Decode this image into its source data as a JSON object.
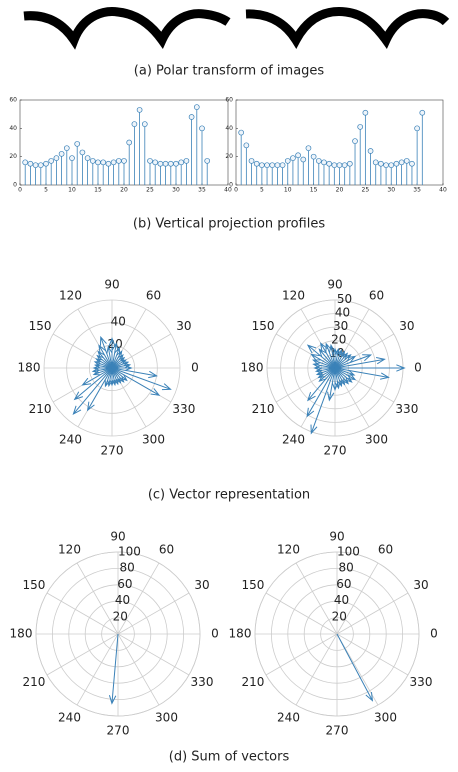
{
  "captions": [
    "(a) Polar transform of images",
    "(b) Vertical projection profiles",
    "(c) Vector representation",
    "(d) Sum of vectors"
  ],
  "chart_data": [
    {
      "type": "stem",
      "color": "#3b82b8",
      "x": [
        1,
        2,
        3,
        4,
        5,
        6,
        7,
        8,
        9,
        10,
        11,
        12,
        13,
        14,
        15,
        16,
        17,
        18,
        19,
        20,
        21,
        22,
        23,
        24,
        25,
        26,
        27,
        28,
        29,
        30,
        31,
        32,
        33,
        34,
        35,
        36
      ],
      "values": [
        16,
        15,
        14,
        14,
        15,
        17,
        19,
        22,
        26,
        19,
        29,
        23,
        19,
        17,
        16,
        16,
        15,
        16,
        17,
        17,
        30,
        43,
        53,
        43,
        17,
        16,
        15,
        15,
        15,
        15,
        16,
        17,
        48,
        55,
        40,
        17
      ],
      "xlim": [
        0,
        40
      ],
      "xticks": [
        0,
        5,
        10,
        15,
        20,
        25,
        30,
        35,
        40
      ],
      "ylim": [
        0,
        60
      ],
      "yticks": [
        0,
        20,
        40,
        60
      ]
    },
    {
      "type": "stem",
      "color": "#3b82b8",
      "x": [
        1,
        2,
        3,
        4,
        5,
        6,
        7,
        8,
        9,
        10,
        11,
        12,
        13,
        14,
        15,
        16,
        17,
        18,
        19,
        20,
        21,
        22,
        23,
        24,
        25,
        26,
        27,
        28,
        29,
        30,
        31,
        32,
        33,
        34,
        35,
        36
      ],
      "values": [
        37,
        28,
        17,
        15,
        14,
        14,
        14,
        14,
        14,
        17,
        19,
        21,
        18,
        26,
        20,
        17,
        16,
        15,
        14,
        14,
        14,
        15,
        31,
        41,
        51,
        24,
        16,
        15,
        14,
        14,
        15,
        16,
        17,
        15,
        40,
        51
      ],
      "xlim": [
        0,
        40
      ],
      "xticks": [
        0,
        5,
        10,
        15,
        20,
        25,
        30,
        35,
        40
      ],
      "ylim": [
        0,
        60
      ],
      "yticks": [
        0,
        20,
        40,
        60
      ]
    },
    {
      "type": "compass",
      "color": "#3b82b8",
      "theta": [
        10,
        20,
        30,
        40,
        50,
        60,
        70,
        80,
        90,
        100,
        110,
        120,
        130,
        140,
        150,
        160,
        170,
        180,
        190,
        200,
        210,
        220,
        230,
        240,
        250,
        260,
        270,
        280,
        290,
        300,
        310,
        320,
        330,
        340,
        350,
        360
      ],
      "r": [
        16,
        15,
        14,
        14,
        15,
        17,
        19,
        22,
        26,
        19,
        29,
        23,
        19,
        17,
        16,
        16,
        15,
        16,
        17,
        17,
        30,
        43,
        53,
        43,
        17,
        16,
        15,
        15,
        15,
        15,
        16,
        17,
        48,
        55,
        40,
        17
      ],
      "rlim": [
        0,
        60
      ],
      "rticks": [
        20,
        40
      ],
      "thetaticks": [
        0,
        30,
        60,
        90,
        120,
        150,
        180,
        210,
        240,
        270,
        300,
        330
      ]
    },
    {
      "type": "compass",
      "color": "#3b82b8",
      "theta": [
        10,
        20,
        30,
        40,
        50,
        60,
        70,
        80,
        90,
        100,
        110,
        120,
        130,
        140,
        150,
        160,
        170,
        180,
        190,
        200,
        210,
        220,
        230,
        240,
        250,
        260,
        270,
        280,
        290,
        300,
        310,
        320,
        330,
        340,
        350,
        360
      ],
      "r": [
        37,
        28,
        17,
        15,
        14,
        14,
        14,
        14,
        14,
        17,
        19,
        21,
        18,
        26,
        20,
        17,
        16,
        15,
        14,
        14,
        14,
        15,
        31,
        41,
        51,
        24,
        16,
        15,
        14,
        14,
        15,
        16,
        17,
        15,
        40,
        51
      ],
      "rlim": [
        0,
        50
      ],
      "rticks": [
        10,
        20,
        30,
        40,
        50
      ],
      "thetaticks": [
        0,
        30,
        60,
        90,
        120,
        150,
        180,
        210,
        240,
        270,
        300,
        330
      ]
    },
    {
      "type": "compass",
      "color": "#3b82b8",
      "theta": [
        265
      ],
      "r": [
        85
      ],
      "rlim": [
        0,
        100
      ],
      "rticks": [
        20,
        40,
        60,
        80,
        100
      ],
      "thetaticks": [
        0,
        30,
        60,
        90,
        120,
        150,
        180,
        210,
        240,
        270,
        300,
        330
      ]
    },
    {
      "type": "compass",
      "color": "#3b82b8",
      "theta": [
        298
      ],
      "r": [
        92
      ],
      "rlim": [
        0,
        100
      ],
      "rticks": [
        20,
        40,
        60,
        80,
        100
      ],
      "thetaticks": [
        0,
        30,
        60,
        90,
        120,
        150,
        180,
        210,
        240,
        270,
        300,
        330
      ]
    }
  ]
}
